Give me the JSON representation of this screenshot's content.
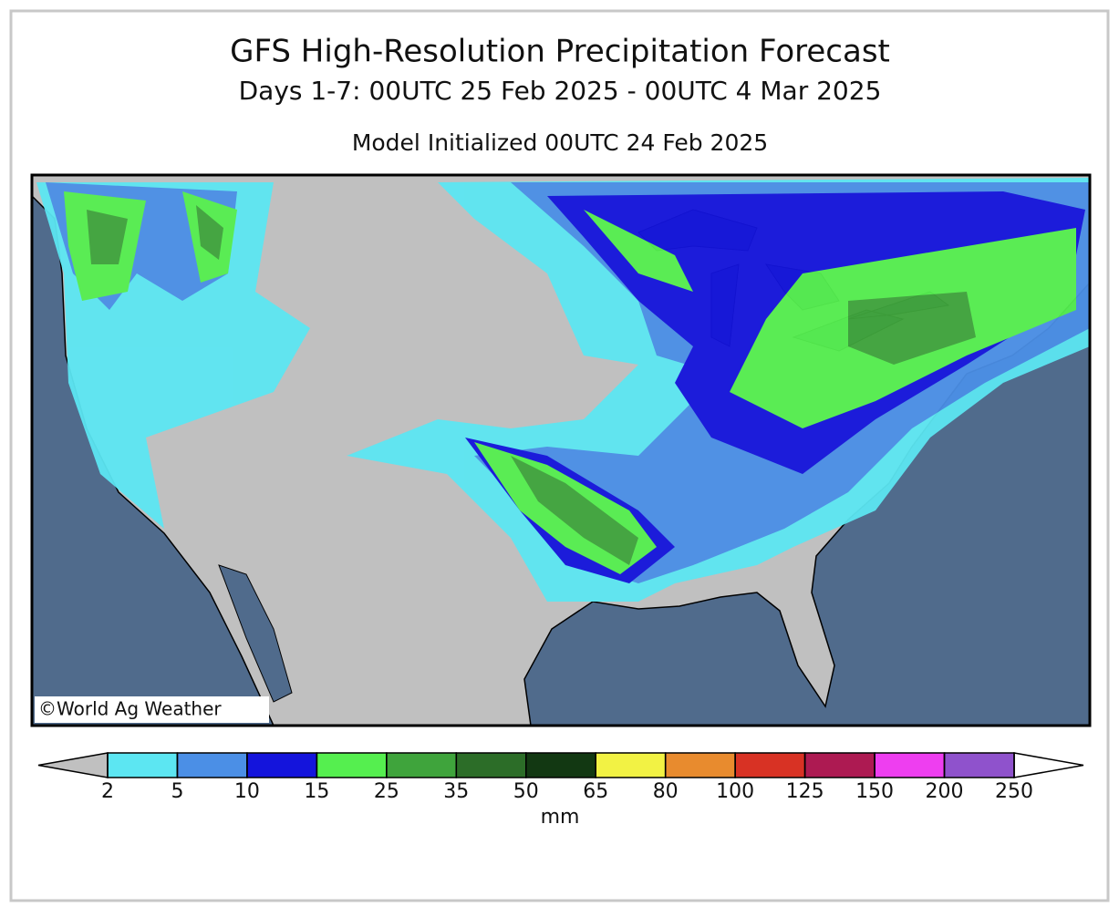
{
  "header": {
    "title": "GFS High-Resolution Precipitation Forecast",
    "subtitle": "Days 1-7: 00UTC 25 Feb 2025 - 00UTC 4 Mar 2025",
    "initialized": "Model Initialized 00UTC 24 Feb 2025"
  },
  "map": {
    "attribution": "©World Ag Weather"
  },
  "legend": {
    "levels": [
      2,
      5,
      10,
      15,
      25,
      35,
      50,
      65,
      80,
      100,
      125,
      150,
      200,
      250
    ],
    "colors": [
      "#5ce6f2",
      "#4b8fe6",
      "#1414dc",
      "#55ef4f",
      "#3fa43c",
      "#2c6d28",
      "#123812",
      "#f2f244",
      "#e88b2e",
      "#d83224",
      "#ad1a52",
      "#ee3ef0",
      "#8f52cc"
    ],
    "under_color": "#c0c0c0",
    "over_color": "#ffffff",
    "unit": "mm"
  }
}
